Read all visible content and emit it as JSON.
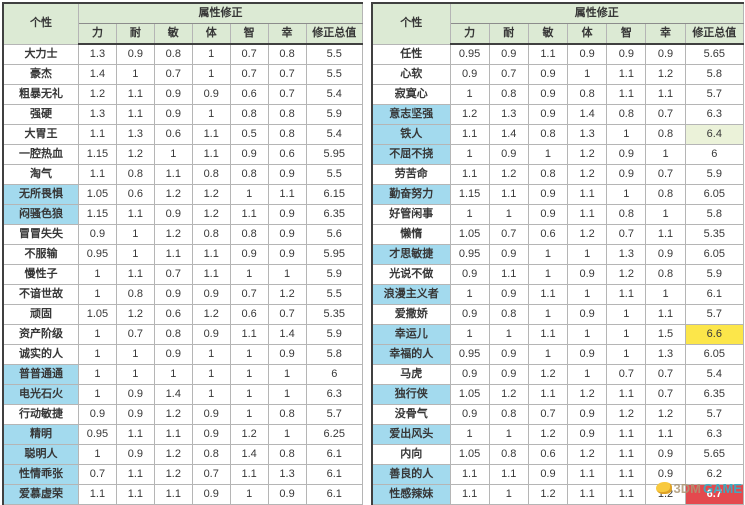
{
  "colors": {
    "header_bg": "#dcead4",
    "highlight_row_bg": "#a3daee",
    "total_green_bg": "#ebf2d9",
    "total_yellow_bg": "#fce64a",
    "total_red_bg": "#e4494e",
    "total_red_text": "#ffffff",
    "text_color": "#373737",
    "outer_border": "#404040",
    "mid_border": "#8c8c8c",
    "cell_border": "#b5b5b5",
    "wm_icon_color": "#f8c93e",
    "wm_3dm_color": "rgba(173,152,118,0.85)",
    "wm_game_color": "rgba(47,179,201,0.9)"
  },
  "watermark": {
    "icon": "3dm-sheep-logo",
    "text_3dm": "3DM",
    "text_game": "GAME"
  },
  "tables": [
    {
      "side": "left",
      "header": {
        "personality": "个性",
        "attr_group": "属性修正",
        "columns": [
          "力",
          "耐",
          "敏",
          "体",
          "智",
          "幸",
          "修正总值"
        ]
      },
      "rows": [
        {
          "label": "大力士",
          "values": [
            "1.3",
            "0.9",
            "0.8",
            "1",
            "0.7",
            "0.8"
          ],
          "total": "5.5",
          "highlight": false
        },
        {
          "label": "豪杰",
          "values": [
            "1.4",
            "1",
            "0.7",
            "1",
            "0.7",
            "0.7"
          ],
          "total": "5.5",
          "highlight": false
        },
        {
          "label": "粗暴无礼",
          "values": [
            "1.2",
            "1.1",
            "0.9",
            "0.9",
            "0.6",
            "0.7"
          ],
          "total": "5.4",
          "highlight": false
        },
        {
          "label": "强硬",
          "values": [
            "1.3",
            "1.1",
            "0.9",
            "1",
            "0.8",
            "0.8"
          ],
          "total": "5.9",
          "highlight": false
        },
        {
          "label": "大胃王",
          "values": [
            "1.1",
            "1.3",
            "0.6",
            "1.1",
            "0.5",
            "0.8"
          ],
          "total": "5.4",
          "highlight": false
        },
        {
          "label": "一腔热血",
          "values": [
            "1.15",
            "1.2",
            "1",
            "1.1",
            "0.9",
            "0.6"
          ],
          "total": "5.95",
          "highlight": false
        },
        {
          "label": "淘气",
          "values": [
            "1.1",
            "0.8",
            "1.1",
            "0.8",
            "0.8",
            "0.9"
          ],
          "total": "5.5",
          "highlight": false
        },
        {
          "label": "无所畏惧",
          "values": [
            "1.05",
            "0.6",
            "1.2",
            "1.2",
            "1",
            "1.1"
          ],
          "total": "6.15",
          "highlight": true
        },
        {
          "label": "闷骚色狼",
          "values": [
            "1.15",
            "1.1",
            "0.9",
            "1.2",
            "1.1",
            "0.9"
          ],
          "total": "6.35",
          "highlight": true
        },
        {
          "label": "冒冒失失",
          "values": [
            "0.9",
            "1",
            "1.2",
            "0.8",
            "0.8",
            "0.9"
          ],
          "total": "5.6",
          "highlight": false
        },
        {
          "label": "不服输",
          "values": [
            "0.95",
            "1",
            "1.1",
            "1.1",
            "0.9",
            "0.9"
          ],
          "total": "5.95",
          "highlight": false
        },
        {
          "label": "慢性子",
          "values": [
            "1",
            "1.1",
            "0.7",
            "1.1",
            "1",
            "1"
          ],
          "total": "5.9",
          "highlight": false
        },
        {
          "label": "不谙世故",
          "values": [
            "1",
            "0.8",
            "0.9",
            "0.9",
            "0.7",
            "1.2"
          ],
          "total": "5.5",
          "highlight": false
        },
        {
          "label": "顽固",
          "values": [
            "1.05",
            "1.2",
            "0.6",
            "1.2",
            "0.6",
            "0.7"
          ],
          "total": "5.35",
          "highlight": false
        },
        {
          "label": "资产阶级",
          "values": [
            "1",
            "0.7",
            "0.8",
            "0.9",
            "1.1",
            "1.4"
          ],
          "total": "5.9",
          "highlight": false
        },
        {
          "label": "诚实的人",
          "values": [
            "1",
            "1",
            "0.9",
            "1",
            "1",
            "0.9"
          ],
          "total": "5.8",
          "highlight": false
        },
        {
          "label": "普普通通",
          "values": [
            "1",
            "1",
            "1",
            "1",
            "1",
            "1"
          ],
          "total": "6",
          "highlight": true
        },
        {
          "label": "电光石火",
          "values": [
            "1",
            "0.9",
            "1.4",
            "1",
            "1",
            "1"
          ],
          "total": "6.3",
          "highlight": true
        },
        {
          "label": "行动敏捷",
          "values": [
            "0.9",
            "0.9",
            "1.2",
            "0.9",
            "1",
            "0.8"
          ],
          "total": "5.7",
          "highlight": false
        },
        {
          "label": "精明",
          "values": [
            "0.95",
            "1.1",
            "1.1",
            "0.9",
            "1.2",
            "1"
          ],
          "total": "6.25",
          "highlight": true
        },
        {
          "label": "聪明人",
          "values": [
            "1",
            "0.9",
            "1.2",
            "0.8",
            "1.4",
            "0.8"
          ],
          "total": "6.1",
          "highlight": true
        },
        {
          "label": "性情乖张",
          "values": [
            "0.7",
            "1.1",
            "1.2",
            "0.7",
            "1.1",
            "1.3"
          ],
          "total": "6.1",
          "highlight": true
        },
        {
          "label": "爱慕虚荣",
          "values": [
            "1.1",
            "1.1",
            "1.1",
            "0.9",
            "1",
            "0.9"
          ],
          "total": "6.1",
          "highlight": true
        }
      ]
    },
    {
      "side": "right",
      "header": {
        "personality": "个性",
        "attr_group": "属性修正",
        "columns": [
          "力",
          "耐",
          "敏",
          "体",
          "智",
          "幸",
          "修正总值"
        ]
      },
      "rows": [
        {
          "label": "任性",
          "values": [
            "0.95",
            "0.9",
            "1.1",
            "0.9",
            "0.9",
            "0.9"
          ],
          "total": "5.65",
          "highlight": false
        },
        {
          "label": "心软",
          "values": [
            "0.9",
            "0.7",
            "0.9",
            "1",
            "1.1",
            "1.2"
          ],
          "total": "5.8",
          "highlight": false
        },
        {
          "label": "寂寞心",
          "values": [
            "1",
            "0.8",
            "0.9",
            "0.8",
            "1.1",
            "1.1"
          ],
          "total": "5.7",
          "highlight": false
        },
        {
          "label": "意志坚强",
          "values": [
            "1.2",
            "1.3",
            "0.9",
            "1.4",
            "0.8",
            "0.7"
          ],
          "total": "6.3",
          "highlight": true
        },
        {
          "label": "铁人",
          "values": [
            "1.1",
            "1.4",
            "0.8",
            "1.3",
            "1",
            "0.8"
          ],
          "total": "6.4",
          "highlight": true,
          "total_style": "green"
        },
        {
          "label": "不屈不挠",
          "values": [
            "1",
            "0.9",
            "1",
            "1.2",
            "0.9",
            "1"
          ],
          "total": "6",
          "highlight": true
        },
        {
          "label": "劳苦命",
          "values": [
            "1.1",
            "1.2",
            "0.8",
            "1.2",
            "0.9",
            "0.7"
          ],
          "total": "5.9",
          "highlight": false
        },
        {
          "label": "勤奋努力",
          "values": [
            "1.15",
            "1.1",
            "0.9",
            "1.1",
            "1",
            "0.8"
          ],
          "total": "6.05",
          "highlight": true
        },
        {
          "label": "好管闲事",
          "values": [
            "1",
            "1",
            "0.9",
            "1.1",
            "0.8",
            "1"
          ],
          "total": "5.8",
          "highlight": false
        },
        {
          "label": "懒惰",
          "values": [
            "1.05",
            "0.7",
            "0.6",
            "1.2",
            "0.7",
            "1.1"
          ],
          "total": "5.35",
          "highlight": false
        },
        {
          "label": "才思敏捷",
          "values": [
            "0.95",
            "0.9",
            "1",
            "1",
            "1.3",
            "0.9"
          ],
          "total": "6.05",
          "highlight": true
        },
        {
          "label": "光说不做",
          "values": [
            "0.9",
            "1.1",
            "1",
            "0.9",
            "1.2",
            "0.8"
          ],
          "total": "5.9",
          "highlight": false
        },
        {
          "label": "浪漫主义者",
          "values": [
            "1",
            "0.9",
            "1.1",
            "1",
            "1.1",
            "1"
          ],
          "total": "6.1",
          "highlight": true
        },
        {
          "label": "爱撒娇",
          "values": [
            "0.9",
            "0.8",
            "1",
            "0.9",
            "1",
            "1.1"
          ],
          "total": "5.7",
          "highlight": false
        },
        {
          "label": "幸运儿",
          "values": [
            "1",
            "1",
            "1.1",
            "1",
            "1",
            "1.5"
          ],
          "total": "6.6",
          "highlight": true,
          "total_style": "yellow"
        },
        {
          "label": "幸福的人",
          "values": [
            "0.95",
            "0.9",
            "1",
            "0.9",
            "1",
            "1.3"
          ],
          "total": "6.05",
          "highlight": true
        },
        {
          "label": "马虎",
          "values": [
            "0.9",
            "0.9",
            "1.2",
            "1",
            "0.7",
            "0.7"
          ],
          "total": "5.4",
          "highlight": false
        },
        {
          "label": "独行侠",
          "values": [
            "1.05",
            "1.2",
            "1.1",
            "1.2",
            "1.1",
            "0.7"
          ],
          "total": "6.35",
          "highlight": true
        },
        {
          "label": "没骨气",
          "values": [
            "0.9",
            "0.8",
            "0.7",
            "0.9",
            "1.2",
            "1.2"
          ],
          "total": "5.7",
          "highlight": false
        },
        {
          "label": "爱出风头",
          "values": [
            "1",
            "1",
            "1.2",
            "0.9",
            "1.1",
            "1.1"
          ],
          "total": "6.3",
          "highlight": true
        },
        {
          "label": "内向",
          "values": [
            "1.05",
            "0.8",
            "0.6",
            "1.2",
            "1.1",
            "0.9"
          ],
          "total": "5.65",
          "highlight": false
        },
        {
          "label": "善良的人",
          "values": [
            "1.1",
            "1.1",
            "0.9",
            "1.1",
            "1.1",
            "0.9"
          ],
          "total": "6.2",
          "highlight": true
        },
        {
          "label": "性感辣妹",
          "values": [
            "1.1",
            "1",
            "1.2",
            "1.1",
            "1.1",
            "1.2"
          ],
          "total": "6.7",
          "highlight": true,
          "total_style": "red"
        }
      ]
    }
  ]
}
